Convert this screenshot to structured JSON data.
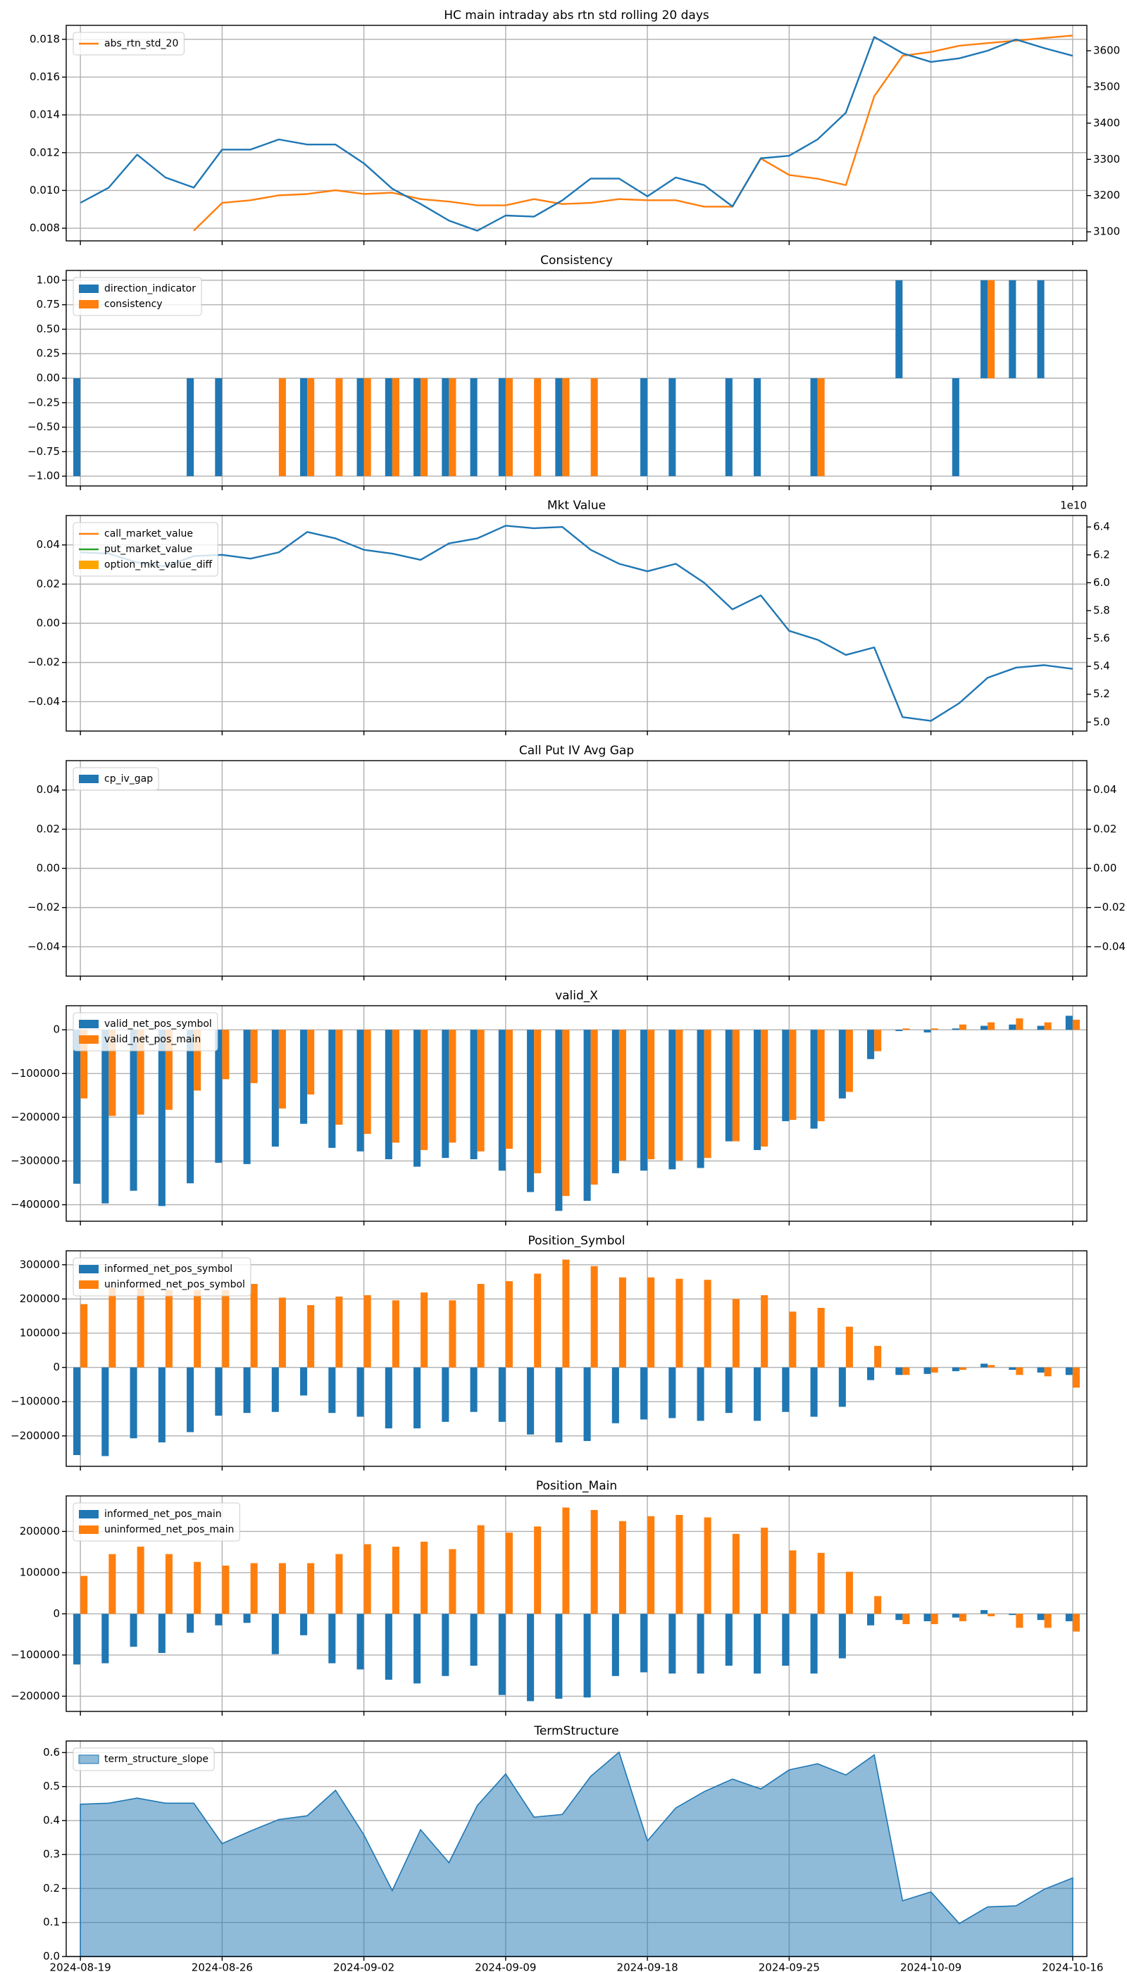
{
  "chart_data": [
    {
      "type": "line",
      "title": "HC main intraday abs rtn std rolling 20 days",
      "grid": true,
      "legend": "upper left",
      "ylim": [
        0.00733,
        0.01874
      ],
      "yticks": [
        0.008,
        {
          "value": 0.01,
          "label": "0.010"
        },
        0.012,
        0.014,
        0.016,
        0.018
      ],
      "y2lim": [
        3075,
        3670
      ],
      "y2ticks": [
        3100,
        3200,
        3300,
        3400,
        3500,
        3600
      ],
      "series": [
        {
          "name": "abs_rtn_std_20",
          "color": "#ff7f0e",
          "values": [
            null,
            null,
            null,
            null,
            0.00787,
            0.00934,
            0.00948,
            0.00974,
            0.00981,
            0.01001,
            0.00981,
            0.00988,
            0.00954,
            0.00941,
            0.00921,
            0.00921,
            0.00954,
            0.00928,
            0.00934,
            0.00954,
            0.00948,
            0.00948,
            0.00914,
            0.00914,
            0.01169,
            0.01082,
            0.01062,
            0.01028,
            0.01498,
            0.01713,
            0.01733,
            0.01766,
            0.0178,
            0.01793,
            0.01807,
            0.0182
          ]
        },
        {
          "color": "#1f77b4",
          "axis": "y2",
          "values": [
            3180,
            3222,
            3313,
            3250,
            3222,
            3327,
            3327,
            3355,
            3341,
            3341,
            3289,
            3219,
            3177,
            3131,
            3103,
            3145,
            3142,
            3187,
            3247,
            3247,
            3198,
            3250,
            3229,
            3170,
            3303,
            3310,
            3355,
            3429,
            3638,
            3593,
            3569,
            3579,
            3600,
            3631,
            3607,
            3586
          ]
        }
      ]
    },
    {
      "type": "bar",
      "title": "Consistency",
      "grid": true,
      "legend": "upper left",
      "ylim": [
        -1.1,
        1.1
      ],
      "yticks": [
        {
          "value": -1,
          "label": "−1.00"
        },
        {
          "value": -0.75,
          "label": "−0.75"
        },
        {
          "value": -0.5,
          "label": "−0.50"
        },
        {
          "value": -0.25,
          "label": "−0.25"
        },
        {
          "value": 0,
          "label": "0.00"
        },
        0.25,
        {
          "value": 0.5,
          "label": "0.50"
        },
        0.75,
        {
          "value": 1,
          "label": "1.00"
        }
      ],
      "series": [
        {
          "name": "direction_indicator",
          "color": "#1f77b4",
          "values": [
            -1,
            0,
            0,
            0,
            -1,
            -1,
            0,
            0,
            -1,
            0,
            -1,
            -1,
            -1,
            -1,
            -1,
            -1,
            0,
            -1,
            0,
            0,
            -1,
            -1,
            0,
            -1,
            -1,
            0,
            -1,
            0,
            0,
            1,
            0,
            -1,
            1,
            1,
            1,
            0
          ]
        },
        {
          "name": "consistency",
          "color": "#ff7f0e",
          "values": [
            0,
            0,
            0,
            0,
            0,
            0,
            0,
            -1,
            -1,
            -1,
            -1,
            -1,
            -1,
            -1,
            0,
            -1,
            -1,
            -1,
            -1,
            0,
            0,
            0,
            0,
            0,
            0,
            0,
            -1,
            0,
            0,
            0,
            0,
            0,
            1,
            0,
            0,
            0
          ]
        }
      ]
    },
    {
      "type": "line",
      "title": "Mkt Value",
      "grid": true,
      "legend": "upper left",
      "ylim": [
        -0.055,
        0.055
      ],
      "yticks": [
        {
          "value": -0.04,
          "label": "−0.04"
        },
        {
          "value": -0.02,
          "label": "−0.02"
        },
        {
          "value": 0,
          "label": "0.00"
        },
        0.02,
        0.04
      ],
      "y2lim": [
        4.936,
        6.482
      ],
      "y2ticks": [
        {
          "value": 5,
          "label": "5.0"
        },
        5.2,
        5.4,
        5.6,
        5.8,
        {
          "value": 6,
          "label": "6.0"
        },
        6.2,
        6.4
      ],
      "y2_offset_label": "1e10",
      "series": [
        {
          "name": "call_market_value",
          "color": "#ff7f0e",
          "values": [
            null,
            null,
            null,
            null,
            null,
            null,
            null,
            null,
            null,
            null,
            null,
            null,
            null,
            null,
            null,
            null,
            null,
            null,
            null,
            null,
            null,
            null,
            null,
            null,
            null,
            null,
            null,
            null,
            null,
            null,
            null,
            null,
            null,
            null,
            null,
            null
          ]
        },
        {
          "name": "put_market_value",
          "color": "#2ca02c",
          "values": [
            null,
            null,
            null,
            null,
            null,
            null,
            null,
            null,
            null,
            null,
            null,
            null,
            null,
            null,
            null,
            null,
            null,
            null,
            null,
            null,
            null,
            null,
            null,
            null,
            null,
            null,
            null,
            null,
            null,
            null,
            null,
            null,
            null,
            null,
            null,
            null
          ]
        },
        {
          "name": "option_mkt_value_diff",
          "color": "#ffa500",
          "kind": "bar",
          "values": [
            null,
            null,
            null,
            null,
            null,
            null,
            null,
            null,
            null,
            null,
            null,
            null,
            null,
            null,
            null,
            null,
            null,
            null,
            null,
            null,
            null,
            null,
            null,
            null,
            null,
            null,
            null,
            null,
            null,
            null,
            null,
            null,
            null,
            null,
            null,
            null
          ]
        },
        {
          "color": "#1f77b4",
          "axis": "y2",
          "values": [
            6.218,
            6.209,
            6.145,
            6.118,
            6.191,
            6.2,
            6.173,
            6.218,
            6.364,
            6.318,
            6.236,
            6.209,
            6.164,
            6.282,
            6.318,
            6.409,
            6.391,
            6.4,
            6.236,
            6.136,
            6.082,
            6.136,
            6.0,
            5.809,
            5.909,
            5.655,
            5.591,
            5.482,
            5.536,
            5.036,
            5.009,
            5.136,
            5.318,
            5.391,
            5.409,
            5.382
          ]
        }
      ]
    },
    {
      "type": "bar",
      "title": "Call Put IV Avg Gap",
      "grid": true,
      "legend": "upper left",
      "ylim": [
        -0.055,
        0.055
      ],
      "yticks": [
        {
          "value": -0.04,
          "label": "−0.04"
        },
        {
          "value": -0.02,
          "label": "−0.02"
        },
        {
          "value": 0,
          "label": "0.00"
        },
        0.02,
        0.04
      ],
      "y2lim": [
        -0.055,
        0.055
      ],
      "y2ticks": [
        {
          "value": -0.04,
          "label": "−0.04"
        },
        {
          "value": -0.02,
          "label": "−0.02"
        },
        {
          "value": 0,
          "label": "0.00"
        },
        0.02,
        0.04
      ],
      "series": [
        {
          "name": "cp_iv_gap",
          "color": "#1f77b4",
          "values": [
            null,
            null,
            null,
            null,
            null,
            null,
            null,
            null,
            null,
            null,
            null,
            null,
            null,
            null,
            null,
            null,
            null,
            null,
            null,
            null,
            null,
            null,
            null,
            null,
            null,
            null,
            null,
            null,
            null,
            null,
            null,
            null,
            null,
            null,
            null,
            null
          ]
        }
      ]
    },
    {
      "type": "bar",
      "title": "valid_X",
      "grid": true,
      "legend": "upper left",
      "ylim": [
        -437700,
        55000
      ],
      "yticks": [
        {
          "value": -400000,
          "label": "−400000"
        },
        {
          "value": -300000,
          "label": "−300000"
        },
        {
          "value": -200000,
          "label": "−200000"
        },
        {
          "value": -100000,
          "label": "−100000"
        },
        0
      ],
      "series": [
        {
          "name": "valid_net_pos_symbol",
          "color": "#1f77b4",
          "values": [
            -352000,
            -397000,
            -368000,
            -403000,
            -351000,
            -304000,
            -307000,
            -267000,
            -215000,
            -270000,
            -278000,
            -296000,
            -313000,
            -293000,
            -296000,
            -322000,
            -371000,
            -414000,
            -391000,
            -328000,
            -322000,
            -319000,
            -316000,
            -255000,
            -275000,
            -209000,
            -226000,
            -157000,
            -67000,
            -3000,
            -6000,
            3000,
            9000,
            12000,
            9000,
            32000
          ]
        },
        {
          "name": "valid_net_pos_main",
          "color": "#ff7f0e",
          "values": [
            -157000,
            -197000,
            -194000,
            -183000,
            -139000,
            -113000,
            -122000,
            -180000,
            -148000,
            -217000,
            -238000,
            -258000,
            -275000,
            -258000,
            -278000,
            -272000,
            -328000,
            -380000,
            -354000,
            -299000,
            -296000,
            -299000,
            -293000,
            -255000,
            -267000,
            -206000,
            -209000,
            -142000,
            -49000,
            3000,
            3000,
            12000,
            17000,
            26000,
            17000,
            23000
          ]
        }
      ]
    },
    {
      "type": "bar",
      "title": "Position_Symbol",
      "grid": true,
      "legend": "upper left",
      "ylim": [
        -288900,
        340700
      ],
      "yticks": [
        {
          "value": -200000,
          "label": "−200000"
        },
        {
          "value": -100000,
          "label": "−100000"
        },
        0,
        100000,
        200000,
        300000
      ],
      "series": [
        {
          "name": "informed_net_pos_symbol",
          "color": "#1f77b4",
          "values": [
            -256000,
            -259000,
            -207000,
            -219000,
            -189000,
            -141000,
            -133000,
            -130000,
            -82000,
            -133000,
            -144000,
            -178000,
            -178000,
            -159000,
            -130000,
            -159000,
            -196000,
            -219000,
            -215000,
            -163000,
            -152000,
            -148000,
            -156000,
            -133000,
            -156000,
            -130000,
            -144000,
            -115000,
            -37000,
            -22000,
            -19000,
            -11000,
            11000,
            -7000,
            -15000,
            -22000
          ]
        },
        {
          "name": "uninformed_net_pos_symbol",
          "color": "#ff7f0e",
          "values": [
            185000,
            233000,
            230000,
            226000,
            226000,
            226000,
            244000,
            204000,
            182000,
            207000,
            211000,
            196000,
            219000,
            196000,
            244000,
            252000,
            274000,
            315000,
            296000,
            263000,
            263000,
            259000,
            256000,
            200000,
            211000,
            163000,
            174000,
            119000,
            63000,
            -22000,
            -15000,
            -7000,
            7000,
            -22000,
            -26000,
            -59000
          ]
        }
      ]
    },
    {
      "type": "bar",
      "title": "Position_Main",
      "grid": true,
      "legend": "upper left",
      "ylim": [
        -236900,
        286200
      ],
      "yticks": [
        {
          "value": -200000,
          "label": "−200000"
        },
        {
          "value": -100000,
          "label": "−100000"
        },
        0,
        100000,
        200000
      ],
      "series": [
        {
          "name": "informed_net_pos_main",
          "color": "#1f77b4",
          "values": [
            -123000,
            -120000,
            -80000,
            -95000,
            -46000,
            -28000,
            -22000,
            -98000,
            -52000,
            -120000,
            -135000,
            -160000,
            -169000,
            -151000,
            -126000,
            -197000,
            -212000,
            -206000,
            -203000,
            -151000,
            -142000,
            -145000,
            -145000,
            -126000,
            -145000,
            -126000,
            -145000,
            -108000,
            -28000,
            -15000,
            -18000,
            -9000,
            9000,
            -3000,
            -15000,
            -18000
          ]
        },
        {
          "name": "uninformed_net_pos_main",
          "color": "#ff7f0e",
          "values": [
            92000,
            145000,
            163000,
            145000,
            126000,
            117000,
            123000,
            123000,
            123000,
            145000,
            169000,
            163000,
            175000,
            157000,
            215000,
            197000,
            212000,
            258000,
            252000,
            225000,
            237000,
            240000,
            234000,
            194000,
            209000,
            154000,
            148000,
            102000,
            43000,
            -25000,
            -25000,
            -18000,
            -6000,
            -34000,
            -34000,
            -43000
          ]
        }
      ]
    },
    {
      "type": "area",
      "title": "TermStructure",
      "grid": true,
      "legend": "upper left",
      "ylim": [
        0,
        0.634
      ],
      "yticks": [
        {
          "value": 0,
          "label": "0.0"
        },
        0.1,
        0.2,
        0.3,
        0.4,
        0.5,
        0.6
      ],
      "categories": [
        "2024-08-19",
        null,
        null,
        null,
        null,
        "2024-08-26",
        null,
        null,
        null,
        null,
        "2024-09-02",
        null,
        null,
        null,
        null,
        "2024-09-09",
        null,
        null,
        null,
        null,
        "2024-09-18",
        null,
        null,
        null,
        null,
        "2024-09-25",
        null,
        null,
        null,
        null,
        "2024-10-09",
        null,
        null,
        null,
        null,
        "2024-10-16"
      ],
      "series": [
        {
          "name": "term_structure_slope",
          "color": "#1f77b4",
          "alpha": 0.5,
          "values": [
            0.448,
            0.451,
            0.466,
            0.451,
            0.451,
            0.332,
            0.369,
            0.403,
            0.414,
            0.489,
            0.358,
            0.194,
            0.373,
            0.276,
            0.444,
            0.537,
            0.41,
            0.418,
            0.53,
            0.601,
            0.34,
            0.437,
            0.485,
            0.522,
            0.493,
            0.549,
            0.567,
            0.534,
            0.593,
            0.164,
            0.19,
            0.097,
            0.146,
            0.149,
            0.198,
            0.231
          ]
        }
      ]
    }
  ]
}
